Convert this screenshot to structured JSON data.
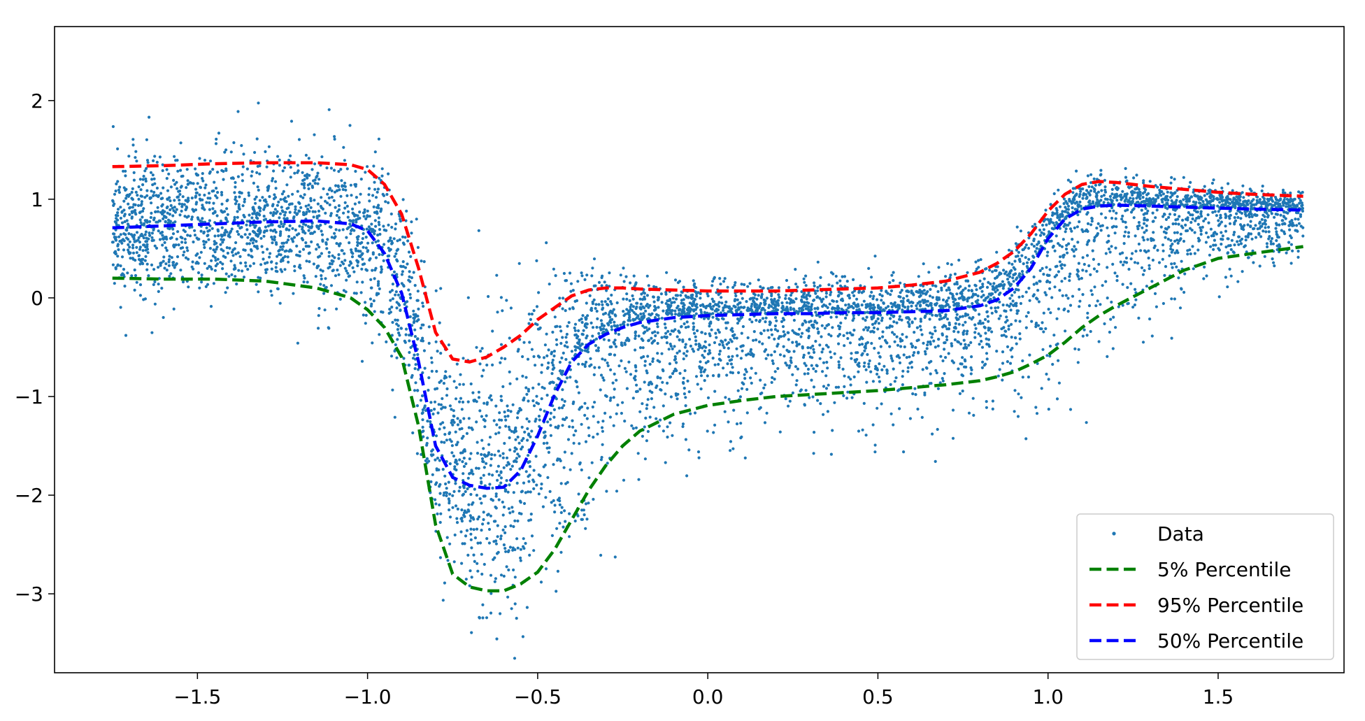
{
  "chart_data": {
    "type": "scatter",
    "title": "",
    "xlabel": "",
    "ylabel": "",
    "xlim": [
      -1.92,
      1.87
    ],
    "ylim": [
      -3.8,
      2.75
    ],
    "xticks": [
      -1.5,
      -1.0,
      -0.5,
      0.0,
      0.5,
      1.0,
      1.5
    ],
    "xtick_labels": [
      "−1.5",
      "−1.0",
      "−0.5",
      "0.0",
      "0.5",
      "1.0",
      "1.5"
    ],
    "yticks": [
      2,
      1,
      0,
      -1,
      -2,
      -3
    ],
    "ytick_labels": [
      "2",
      "1",
      "0",
      "−1",
      "−2",
      "−3"
    ],
    "grid": false,
    "legend_position": "lower-right",
    "x": [
      -1.75,
      -1.6,
      -1.45,
      -1.3,
      -1.15,
      -1.05,
      -1.0,
      -0.95,
      -0.9,
      -0.85,
      -0.8,
      -0.75,
      -0.7,
      -0.65,
      -0.6,
      -0.55,
      -0.5,
      -0.45,
      -0.4,
      -0.35,
      -0.3,
      -0.25,
      -0.2,
      -0.1,
      0.0,
      0.1,
      0.2,
      0.3,
      0.4,
      0.5,
      0.6,
      0.7,
      0.8,
      0.85,
      0.9,
      0.95,
      1.0,
      1.05,
      1.1,
      1.15,
      1.2,
      1.3,
      1.4,
      1.5,
      1.6,
      1.75
    ],
    "series": [
      {
        "name": "Data",
        "kind": "scatter",
        "color": "#1f77b4",
        "band": "scatter_cloud"
      },
      {
        "name": "5% Percentile",
        "kind": "line",
        "color": "#008000",
        "style": "dashed",
        "values": [
          0.2,
          0.19,
          0.19,
          0.17,
          0.1,
          0.0,
          -0.12,
          -0.3,
          -0.6,
          -1.3,
          -2.3,
          -2.8,
          -2.93,
          -2.97,
          -2.97,
          -2.9,
          -2.78,
          -2.55,
          -2.25,
          -1.95,
          -1.7,
          -1.5,
          -1.35,
          -1.18,
          -1.09,
          -1.04,
          -1.0,
          -0.98,
          -0.96,
          -0.94,
          -0.91,
          -0.88,
          -0.84,
          -0.8,
          -0.75,
          -0.67,
          -0.58,
          -0.45,
          -0.3,
          -0.18,
          -0.08,
          0.1,
          0.28,
          0.4,
          0.45,
          0.52
        ]
      },
      {
        "name": "95% Percentile",
        "kind": "line",
        "color": "#ff0000",
        "style": "dashed",
        "values": [
          1.33,
          1.34,
          1.36,
          1.37,
          1.37,
          1.35,
          1.3,
          1.15,
          0.85,
          0.3,
          -0.35,
          -0.62,
          -0.65,
          -0.6,
          -0.5,
          -0.38,
          -0.22,
          -0.1,
          0.02,
          0.08,
          0.1,
          0.1,
          0.09,
          0.08,
          0.07,
          0.07,
          0.07,
          0.08,
          0.09,
          0.1,
          0.13,
          0.17,
          0.26,
          0.35,
          0.47,
          0.65,
          0.88,
          1.05,
          1.15,
          1.18,
          1.17,
          1.13,
          1.1,
          1.07,
          1.05,
          1.03
        ]
      },
      {
        "name": "50% Percentile",
        "kind": "line",
        "color": "#0000ff",
        "style": "dashed",
        "values": [
          0.71,
          0.73,
          0.75,
          0.77,
          0.78,
          0.75,
          0.68,
          0.45,
          0.05,
          -0.65,
          -1.5,
          -1.82,
          -1.9,
          -1.93,
          -1.92,
          -1.75,
          -1.4,
          -0.98,
          -0.65,
          -0.47,
          -0.37,
          -0.3,
          -0.25,
          -0.2,
          -0.18,
          -0.17,
          -0.16,
          -0.16,
          -0.15,
          -0.15,
          -0.14,
          -0.13,
          -0.08,
          -0.02,
          0.1,
          0.3,
          0.6,
          0.8,
          0.9,
          0.93,
          0.94,
          0.93,
          0.92,
          0.91,
          0.9,
          0.89
        ]
      }
    ],
    "legend": [
      {
        "label": "Data",
        "marker": "dot",
        "color": "#1f77b4"
      },
      {
        "label": "5% Percentile",
        "marker": "dashed-line",
        "color": "#008000"
      },
      {
        "label": "95% Percentile",
        "marker": "dashed-line",
        "color": "#ff0000"
      },
      {
        "label": "50% Percentile",
        "marker": "dashed-line",
        "color": "#0000ff"
      }
    ]
  }
}
